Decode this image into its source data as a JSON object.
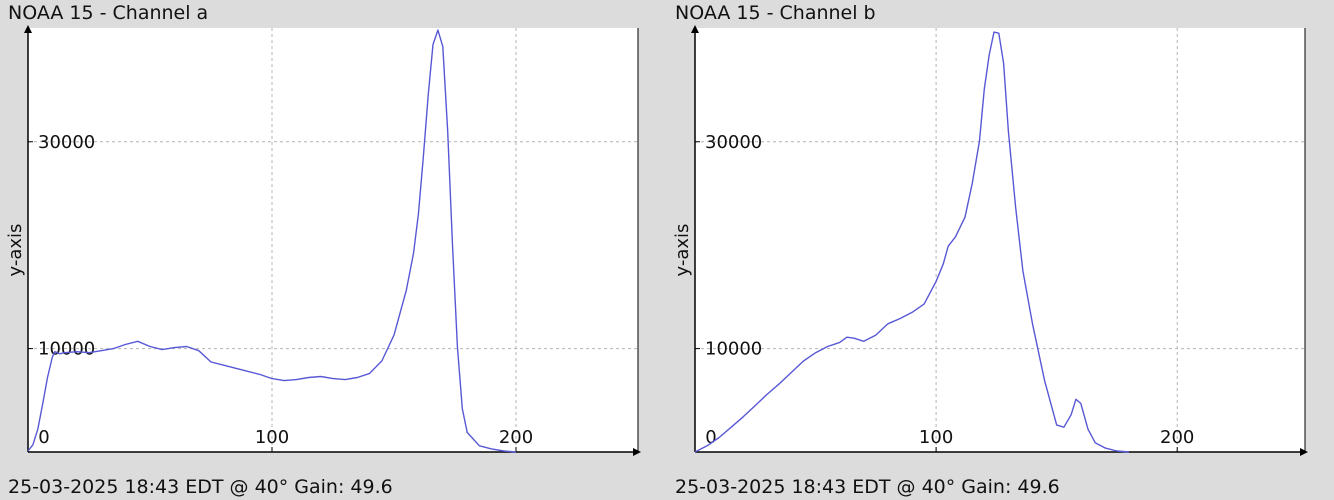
{
  "colors": {
    "background": "#dcdcdc",
    "plot_area": "#ffffff",
    "series": "#5858d6",
    "grid": "#b4b4b4",
    "axis": "#000000"
  },
  "chart_data": [
    {
      "type": "line",
      "title": "NOAA 15 - Channel a",
      "footer": "25-03-2025 18:43 EDT @ 40° Gain: 49.6",
      "xlabel": "",
      "ylabel": "y-axis",
      "xlim": [
        0,
        250
      ],
      "ylim": [
        0,
        41000
      ],
      "xticks": [
        0,
        100,
        200
      ],
      "xtick_labels": [
        "0",
        "100",
        "200"
      ],
      "yticks": [
        10000,
        30000
      ],
      "ytick_labels": [
        "10000",
        "30000"
      ],
      "grid": true,
      "x": [
        0,
        2,
        4,
        6,
        8,
        10,
        11,
        12,
        13,
        15,
        20,
        25,
        30,
        35,
        40,
        45,
        50,
        55,
        60,
        65,
        70,
        75,
        80,
        85,
        90,
        95,
        100,
        105,
        110,
        115,
        120,
        125,
        130,
        135,
        140,
        145,
        150,
        155,
        158,
        160,
        162,
        164,
        166,
        168,
        170,
        172,
        174,
        176,
        178,
        180,
        185,
        190,
        195,
        200
      ],
      "y": [
        100,
        700,
        2200,
        4600,
        7200,
        9200,
        9700,
        9600,
        9500,
        9600,
        9700,
        9600,
        9800,
        10000,
        10400,
        10700,
        10200,
        9900,
        10100,
        10200,
        9800,
        8700,
        8400,
        8100,
        7800,
        7500,
        7100,
        6900,
        7000,
        7200,
        7300,
        7100,
        7000,
        7200,
        7600,
        8800,
        11300,
        15600,
        19200,
        23000,
        28500,
        34500,
        39400,
        40800,
        39200,
        31000,
        19800,
        10200,
        4200,
        1900,
        600,
        300,
        100,
        0
      ]
    },
    {
      "type": "line",
      "title": "NOAA 15 - Channel b",
      "footer": "25-03-2025 18:43 EDT @ 40° Gain: 49.6",
      "xlabel": "",
      "ylabel": "y-axis",
      "xlim": [
        0,
        253
      ],
      "ylim": [
        0,
        41000
      ],
      "xticks": [
        0,
        100,
        200
      ],
      "xtick_labels": [
        "0",
        "100",
        "200"
      ],
      "yticks": [
        10000,
        30000
      ],
      "ytick_labels": [
        "10000",
        "30000"
      ],
      "grid": true,
      "x": [
        0,
        5,
        10,
        15,
        20,
        25,
        30,
        35,
        40,
        45,
        50,
        55,
        60,
        63,
        66,
        70,
        75,
        80,
        85,
        90,
        95,
        100,
        103,
        105,
        108,
        112,
        115,
        118,
        120,
        122,
        124,
        126,
        128,
        130,
        133,
        136,
        140,
        145,
        150,
        153,
        156,
        158,
        160,
        163,
        166,
        170,
        175,
        180
      ],
      "y": [
        0,
        600,
        1400,
        2400,
        3400,
        4500,
        5600,
        6600,
        7700,
        8800,
        9600,
        10200,
        10600,
        11100,
        11000,
        10700,
        11300,
        12400,
        12900,
        13500,
        14300,
        16500,
        18200,
        19900,
        20800,
        22700,
        26000,
        30100,
        35100,
        38400,
        40600,
        40500,
        37600,
        31000,
        23600,
        17500,
        12400,
        6900,
        2600,
        2400,
        3600,
        5100,
        4700,
        2200,
        900,
        400,
        100,
        0
      ]
    }
  ]
}
